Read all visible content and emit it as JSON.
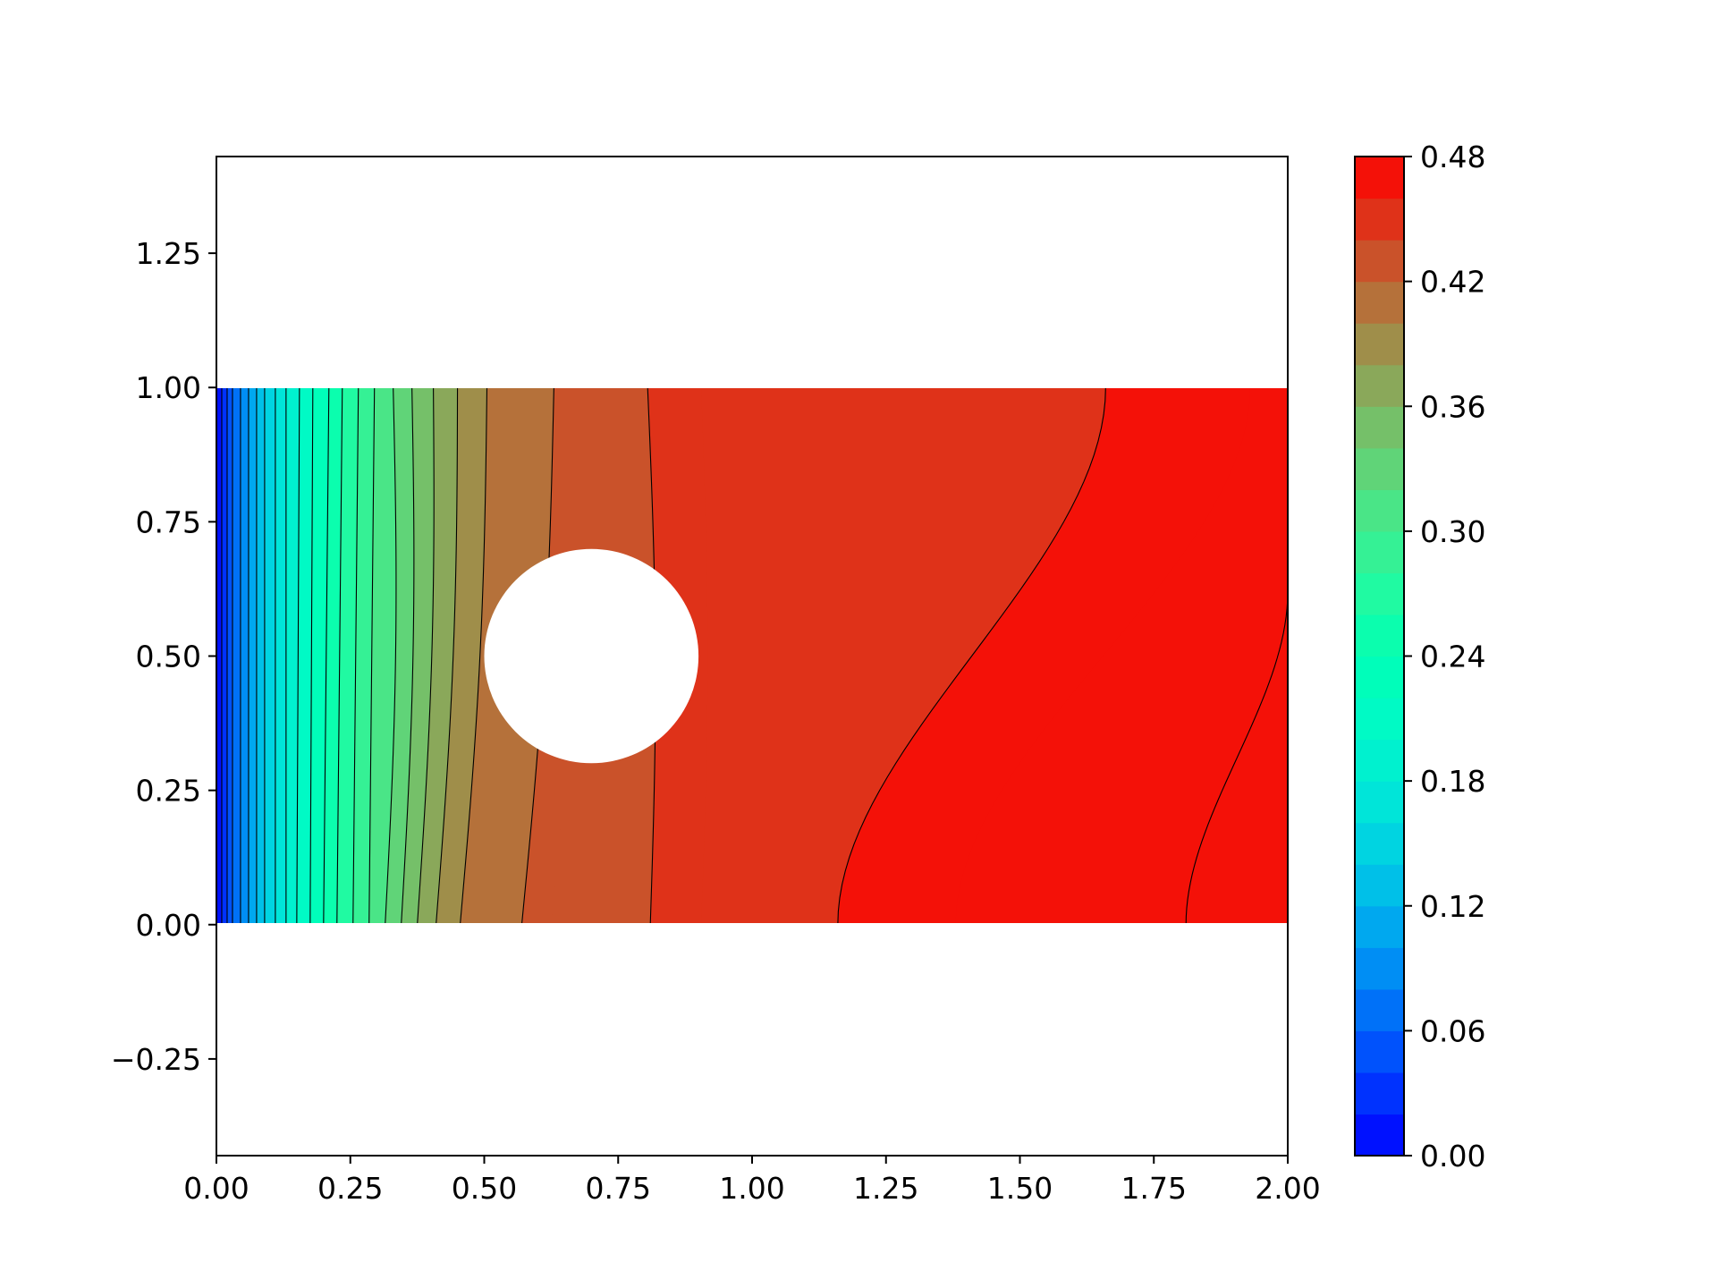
{
  "chart_data": {
    "type": "contour",
    "title": "",
    "xlabel": "",
    "ylabel": "",
    "xlim": [
      0.0,
      2.0
    ],
    "ylim": [
      -0.43,
      1.43
    ],
    "x_ticks": [
      "0.00",
      "0.25",
      "0.50",
      "0.75",
      "1.00",
      "1.25",
      "1.50",
      "1.75",
      "2.00"
    ],
    "y_ticks": [
      "−0.25",
      "0.00",
      "0.25",
      "0.50",
      "0.75",
      "1.00",
      "1.25"
    ],
    "grid": false,
    "colormap": "rainbow",
    "colorbar": {
      "min": 0.0,
      "max": 0.48,
      "ticks": [
        "0.00",
        "0.06",
        "0.12",
        "0.18",
        "0.24",
        "0.30",
        "0.36",
        "0.42",
        "0.48"
      ],
      "levels": 24
    },
    "domain": {
      "x": [
        0.0,
        2.0
      ],
      "y": [
        0.0,
        1.0
      ]
    },
    "obstacle": {
      "shape": "circle",
      "center": [
        0.7,
        0.5
      ],
      "radius": 0.2
    },
    "contour_lines": [
      {
        "level": 0.02,
        "x": [
          0.01,
          0.01
        ]
      },
      {
        "level": 0.04,
        "x": [
          0.02,
          0.02
        ]
      },
      {
        "level": 0.06,
        "x": [
          0.03,
          0.03
        ]
      },
      {
        "level": 0.08,
        "x": [
          0.045,
          0.045
        ]
      },
      {
        "level": 0.1,
        "x": [
          0.06,
          0.06
        ]
      },
      {
        "level": 0.12,
        "x": [
          0.075,
          0.075
        ]
      },
      {
        "level": 0.14,
        "x": [
          0.09,
          0.09
        ]
      },
      {
        "level": 0.16,
        "x": [
          0.11,
          0.11
        ]
      },
      {
        "level": 0.18,
        "x": [
          0.13,
          0.13
        ]
      },
      {
        "level": 0.2,
        "x": [
          0.15,
          0.155
        ]
      },
      {
        "level": 0.22,
        "x": [
          0.175,
          0.18
        ]
      },
      {
        "level": 0.24,
        "x": [
          0.2,
          0.21
        ]
      },
      {
        "level": 0.26,
        "x": [
          0.225,
          0.235
        ]
      },
      {
        "level": 0.28,
        "x": [
          0.255,
          0.265
        ]
      },
      {
        "level": 0.3,
        "x": [
          0.285,
          0.295
        ]
      },
      {
        "level": 0.32,
        "x": [
          0.315,
          0.33
        ]
      },
      {
        "level": 0.34,
        "x": [
          0.345,
          0.365
        ]
      },
      {
        "level": 0.36,
        "x": [
          0.375,
          0.405
        ]
      },
      {
        "level": 0.38,
        "x": [
          0.41,
          0.45
        ]
      },
      {
        "level": 0.4,
        "x": [
          0.455,
          0.505
        ]
      },
      {
        "level": 0.42,
        "x": [
          0.57,
          0.63
        ]
      },
      {
        "level": 0.44,
        "x": [
          0.81,
          0.805
        ]
      },
      {
        "level": 0.46,
        "x": [
          1.16,
          1.66
        ]
      }
    ],
    "fill_bands": [
      {
        "range": [
          0.42,
          0.44
        ],
        "x": [
          0.625,
          0.685
        ]
      },
      {
        "range": [
          0.44,
          0.46
        ],
        "x": [
          0.905,
          0.905
        ]
      },
      {
        "range": [
          0.46,
          0.48
        ],
        "x": [
          1.38,
          1.93
        ]
      }
    ]
  }
}
